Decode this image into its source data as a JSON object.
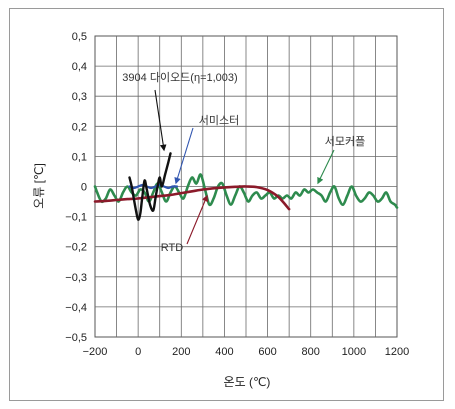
{
  "chart_data": {
    "type": "line",
    "xlabel": "온도 (℃)",
    "ylabel": "오류 [℃]",
    "xlim": [
      -200,
      1200
    ],
    "ylim": [
      -0.5,
      0.5
    ],
    "x_ticks": [
      -200,
      0,
      200,
      400,
      600,
      800,
      1000,
      1200
    ],
    "x_tick_labels": [
      "−200",
      "0",
      "200",
      "400",
      "600",
      "800",
      "1000",
      "1200"
    ],
    "y_ticks": [
      0.5,
      0.4,
      0.3,
      0.2,
      0.1,
      0,
      -0.1,
      -0.2,
      -0.3,
      -0.4,
      -0.5
    ],
    "y_tick_labels": [
      "0,5",
      "0,4",
      "0,3",
      "0,2",
      "0,1",
      "0",
      "−0,1",
      "−0,2",
      "−0,3",
      "−0,4",
      "−0,5"
    ],
    "grid": true,
    "series": [
      {
        "name": "서모커플",
        "color": "#2e8b4e",
        "x": [
          -200,
          -190,
          -170,
          -150,
          -130,
          -110,
          -90,
          -70,
          -50,
          -30,
          -10,
          10,
          30,
          50,
          70,
          90,
          110,
          130,
          150,
          170,
          190,
          210,
          230,
          250,
          270,
          290,
          310,
          330,
          350,
          370,
          390,
          410,
          430,
          450,
          470,
          490,
          510,
          530,
          550,
          570,
          590,
          610,
          630,
          650,
          670,
          690,
          710,
          730,
          750,
          770,
          790,
          810,
          830,
          850,
          870,
          890,
          910,
          930,
          950,
          970,
          990,
          1010,
          1030,
          1050,
          1070,
          1090,
          1110,
          1130,
          1150,
          1170,
          1190,
          1200
        ],
        "y": [
          0.0,
          -0.02,
          -0.05,
          -0.04,
          -0.01,
          -0.03,
          -0.05,
          -0.02,
          0.0,
          -0.02,
          -0.03,
          -0.01,
          -0.02,
          -0.05,
          -0.02,
          0.01,
          -0.02,
          -0.05,
          -0.02,
          0.0,
          -0.02,
          -0.04,
          0.0,
          0.03,
          0.01,
          0.04,
          -0.01,
          -0.06,
          -0.04,
          0.0,
          0.01,
          -0.03,
          -0.06,
          -0.03,
          0.0,
          -0.02,
          -0.05,
          -0.03,
          -0.02,
          -0.04,
          -0.03,
          -0.02,
          -0.04,
          -0.03,
          -0.04,
          -0.03,
          -0.04,
          -0.02,
          -0.03,
          -0.01,
          -0.02,
          -0.01,
          -0.02,
          -0.03,
          -0.05,
          -0.02,
          0.0,
          -0.04,
          -0.06,
          -0.03,
          0.0,
          -0.03,
          -0.05,
          -0.04,
          -0.02,
          -0.03,
          -0.05,
          -0.04,
          -0.02,
          -0.05,
          -0.06,
          -0.07
        ]
      },
      {
        "name": "RTD",
        "color": "#8b1a2a",
        "x": [
          -200,
          -150,
          -100,
          -50,
          0,
          50,
          100,
          150,
          200,
          250,
          300,
          350,
          400,
          450,
          500,
          550,
          600,
          650,
          700
        ],
        "y": [
          -0.05,
          -0.048,
          -0.045,
          -0.042,
          -0.04,
          -0.036,
          -0.032,
          -0.028,
          -0.022,
          -0.016,
          -0.01,
          -0.006,
          -0.003,
          -0.001,
          0.0,
          -0.002,
          -0.012,
          -0.035,
          -0.075
        ]
      },
      {
        "name": "서미스터",
        "color": "#3156b0",
        "x": [
          -40,
          -20,
          0,
          20,
          40,
          60,
          80,
          100,
          120,
          140,
          160,
          180
        ],
        "y": [
          0.0,
          -0.005,
          0.0,
          0.005,
          0.0,
          -0.005,
          0.0,
          0.005,
          0.0,
          -0.005,
          0.0,
          0.0
        ]
      },
      {
        "name": "3904 다이오드(η=1,003)",
        "color": "#111111",
        "x": [
          -40,
          -30,
          -20,
          -10,
          0,
          10,
          20,
          30,
          40,
          55,
          70,
          80,
          90,
          100,
          110,
          125,
          140,
          150
        ],
        "y": [
          0.03,
          0.0,
          -0.04,
          -0.08,
          -0.11,
          -0.09,
          -0.03,
          0.02,
          -0.01,
          -0.06,
          -0.08,
          -0.04,
          0.0,
          0.03,
          0.0,
          0.04,
          0.08,
          0.11
        ]
      }
    ],
    "annotations": [
      {
        "text": "3904 다이오드(η=1,003)",
        "target": "3904 다이오드(η=1,003)"
      },
      {
        "text": "서미스터",
        "target": "서미스터"
      },
      {
        "text": "서모커플",
        "target": "서모커플"
      },
      {
        "text": "RTD",
        "target": "RTD"
      }
    ]
  }
}
